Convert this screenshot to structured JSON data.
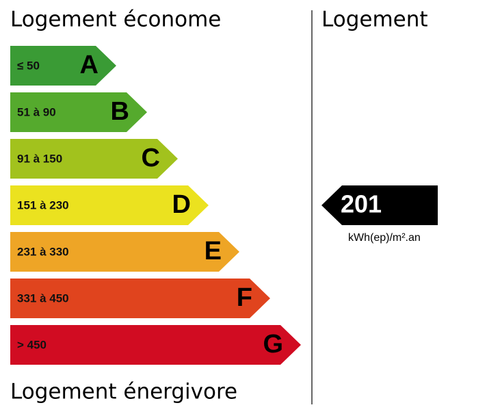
{
  "header": {
    "left_title": "Logement économe",
    "right_title": "Logement"
  },
  "classes": [
    {
      "range": "≤ 50",
      "letter": "A",
      "color": "#3a9b35"
    },
    {
      "range": "51 à 90",
      "letter": "B",
      "color": "#55aa2d"
    },
    {
      "range": "91 à 150",
      "letter": "C",
      "color": "#a2c21d"
    },
    {
      "range": "151 à 230",
      "letter": "D",
      "color": "#ebe21f"
    },
    {
      "range": "231 à 330",
      "letter": "E",
      "color": "#eea526"
    },
    {
      "range": "331 à 450",
      "letter": "F",
      "color": "#e0441e"
    },
    {
      "range": "> 450",
      "letter": "G",
      "color": "#d10c22"
    }
  ],
  "footer": "Logement énergivore",
  "current": {
    "value": 201,
    "unit": "kWh(ep)/m².an"
  }
}
